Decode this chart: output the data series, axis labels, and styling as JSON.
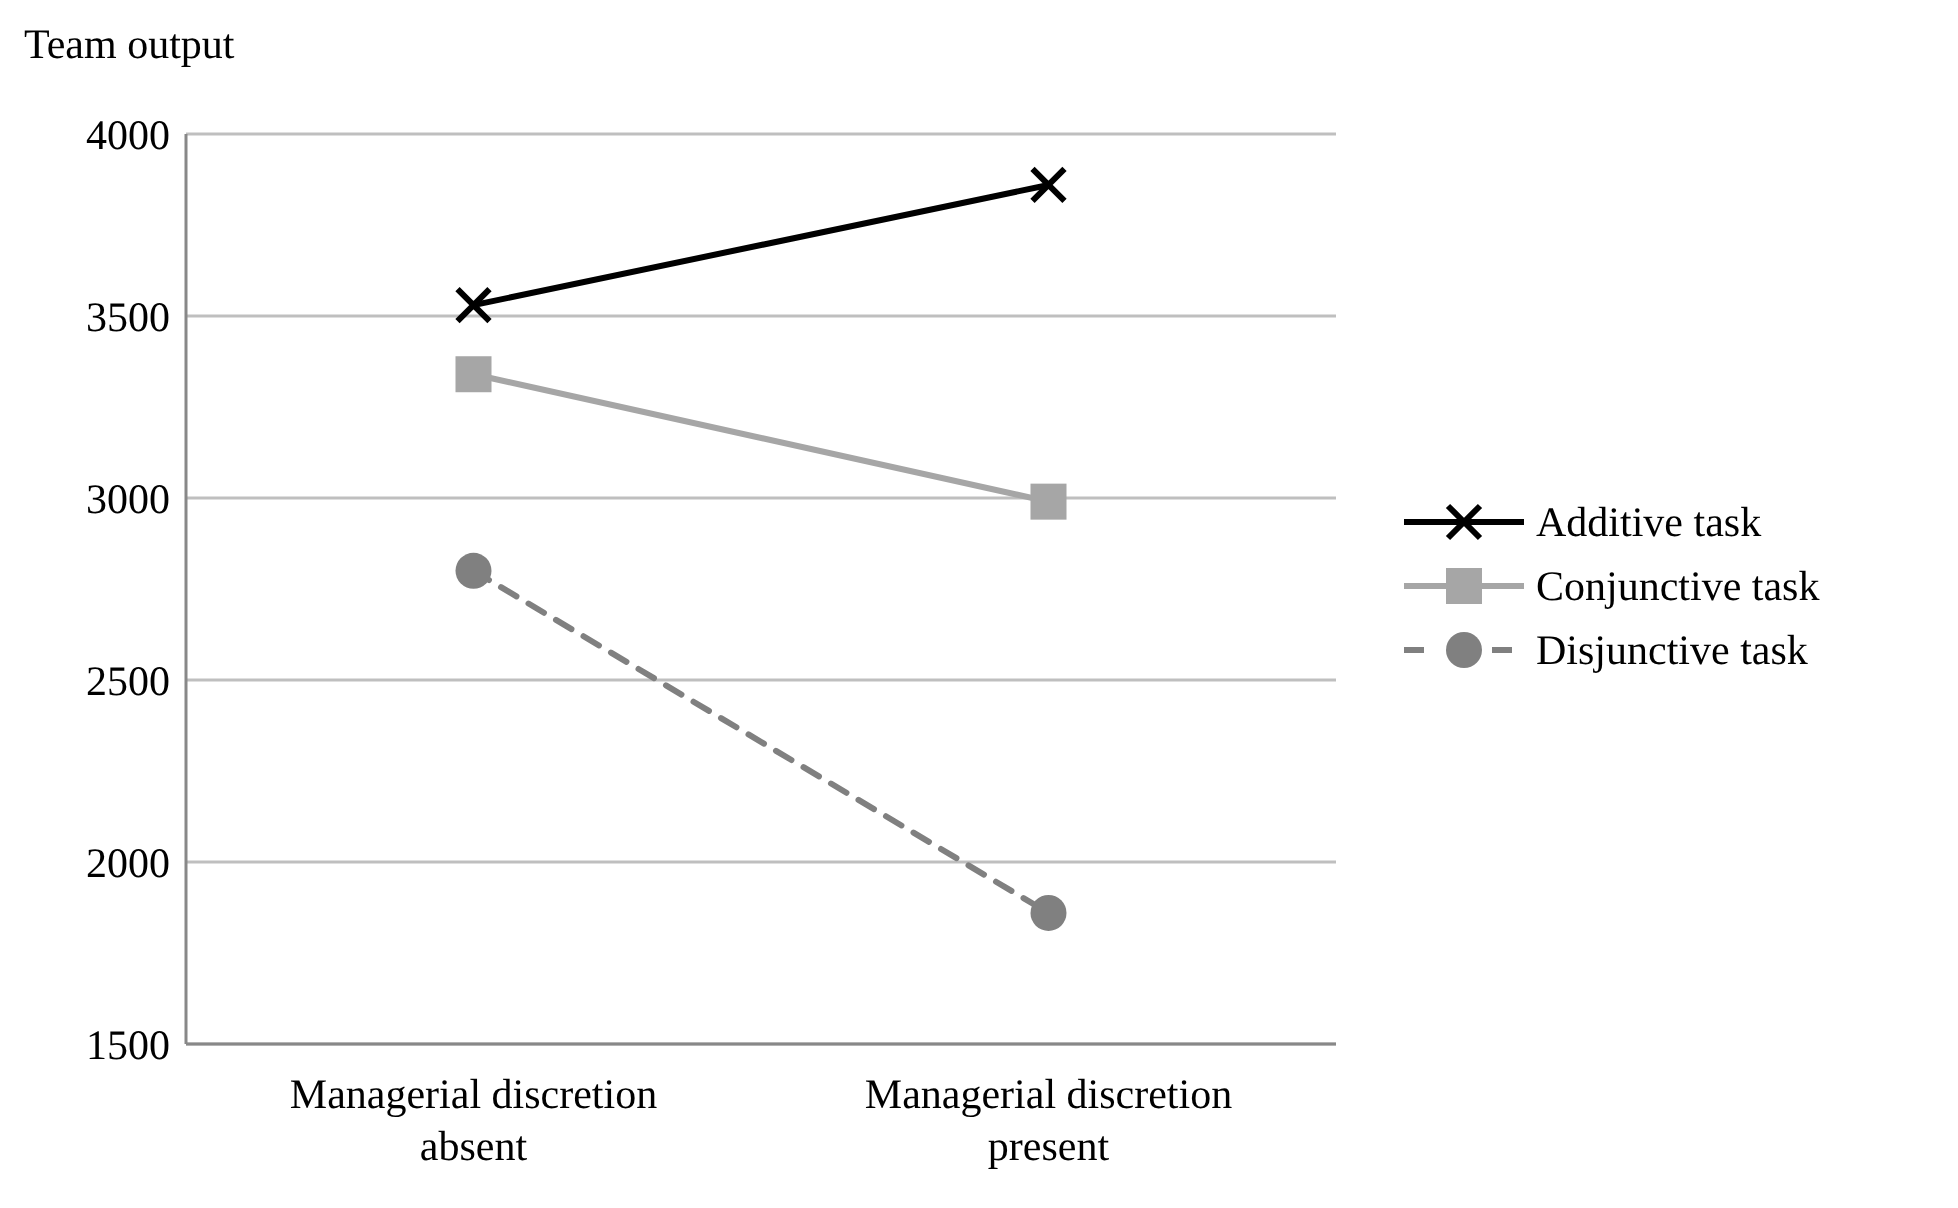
{
  "chart_data": {
    "type": "line",
    "ylabel": "Team output",
    "categories": [
      "Managerial discretion absent",
      "Managerial discretion present"
    ],
    "series": [
      {
        "name": "Additive task",
        "color": "#000000",
        "values": [
          3530,
          3860
        ],
        "marker": "cross",
        "line_style": "solid"
      },
      {
        "name": "Conjunctive task",
        "color": "#a6a6a6",
        "values": [
          3340,
          2990
        ],
        "marker": "square",
        "line_style": "solid"
      },
      {
        "name": "Disjunctive task",
        "color": "#808080",
        "values": [
          2800,
          1860
        ],
        "marker": "circle",
        "line_style": "dashed"
      }
    ],
    "ylim": [
      1500,
      4000
    ],
    "yticks": [
      1500,
      2000,
      2500,
      3000,
      3500,
      4000
    ],
    "grid": "y",
    "legend": "right"
  }
}
